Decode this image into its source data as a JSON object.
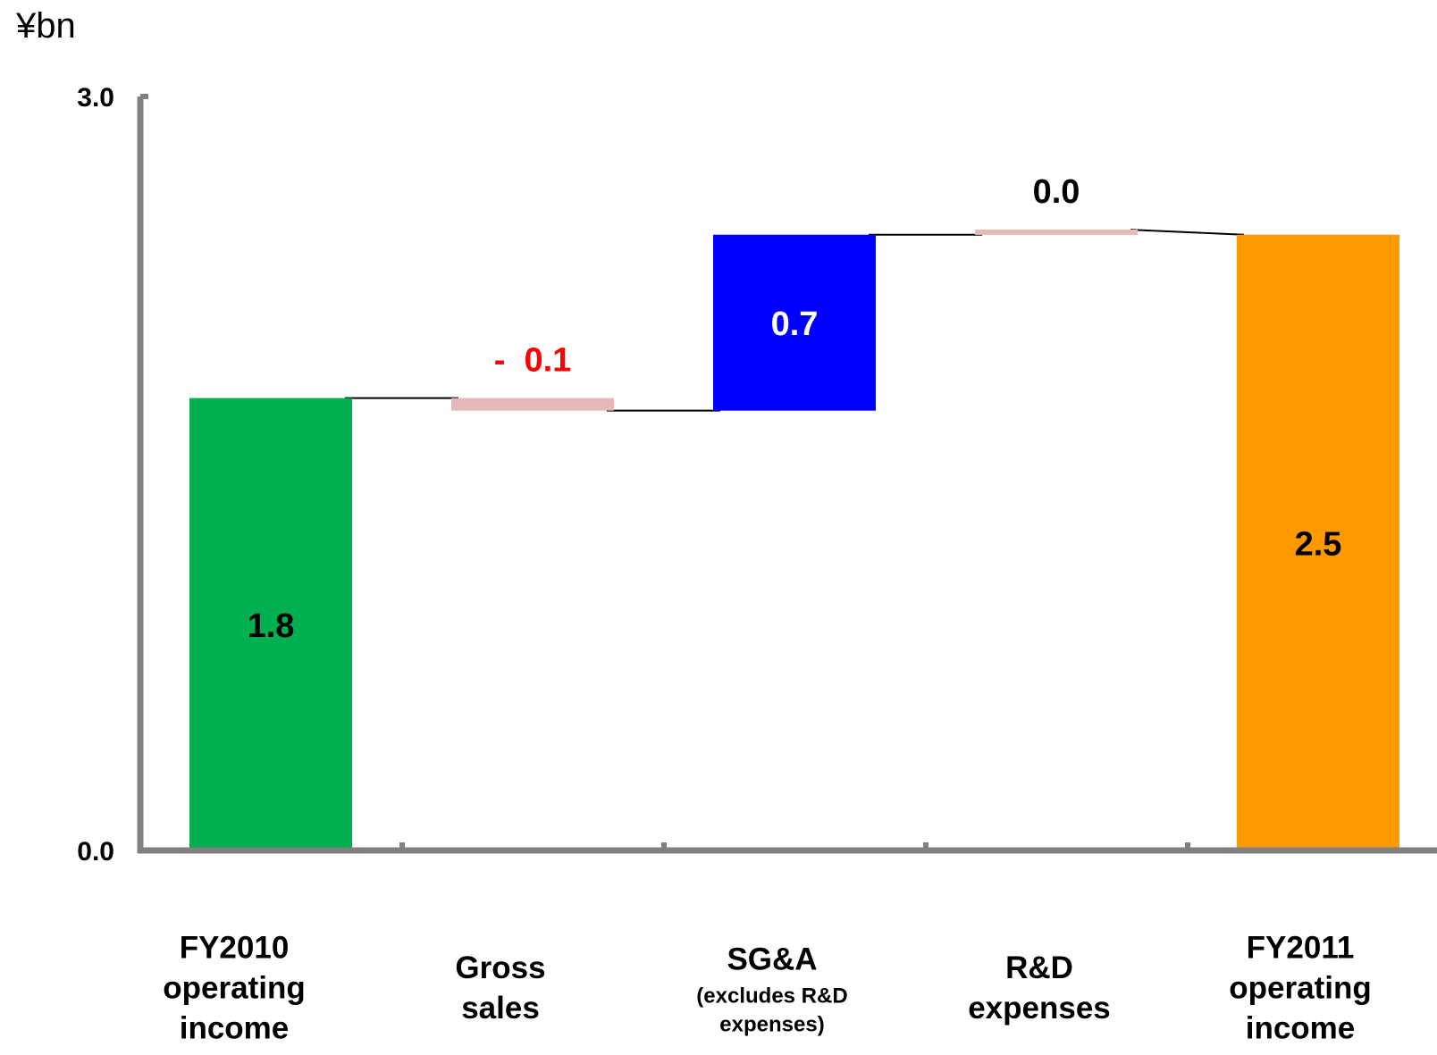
{
  "chart_data": {
    "type": "waterfall",
    "unit": "¥bn",
    "ylim": [
      0,
      3.0
    ],
    "y_tick_labels": [
      "3.0",
      "0.0"
    ],
    "grid": false,
    "legend": "none",
    "categories": [
      {
        "lines": [
          "FY2010",
          "operating",
          "income"
        ],
        "sub_lines": []
      },
      {
        "lines": [
          "Gross",
          "sales"
        ],
        "sub_lines": []
      },
      {
        "lines": [
          "SG&A"
        ],
        "sub_lines": [
          "(excludes R&D",
          "expenses)"
        ]
      },
      {
        "lines": [
          "R&D",
          "expenses"
        ],
        "sub_lines": []
      },
      {
        "lines": [
          "FY2011",
          "operating",
          "income"
        ],
        "sub_lines": []
      }
    ],
    "bars": [
      {
        "kind": "total",
        "start": 0,
        "end": 1.8,
        "label": "1.8",
        "color": "#00b050",
        "label_color": "#000000"
      },
      {
        "kind": "decrease",
        "start": 1.8,
        "end": 1.75,
        "label": "-  0.1",
        "color": "#e6b8b7",
        "label_color": "#ff0000"
      },
      {
        "kind": "increase",
        "start": 1.75,
        "end": 2.45,
        "label": "0.7",
        "color": "#0000ff",
        "label_color": "#ffffff"
      },
      {
        "kind": "change",
        "start": 2.45,
        "end": 2.47,
        "label": "0.0",
        "color": "#e6b8b7",
        "label_color": "#000000"
      },
      {
        "kind": "total",
        "start": 0,
        "end": 2.45,
        "label": "2.5",
        "color": "#ff9900",
        "label_color": "#000000"
      }
    ],
    "colors": {
      "axis": "#808080",
      "connector": "#000000"
    }
  }
}
